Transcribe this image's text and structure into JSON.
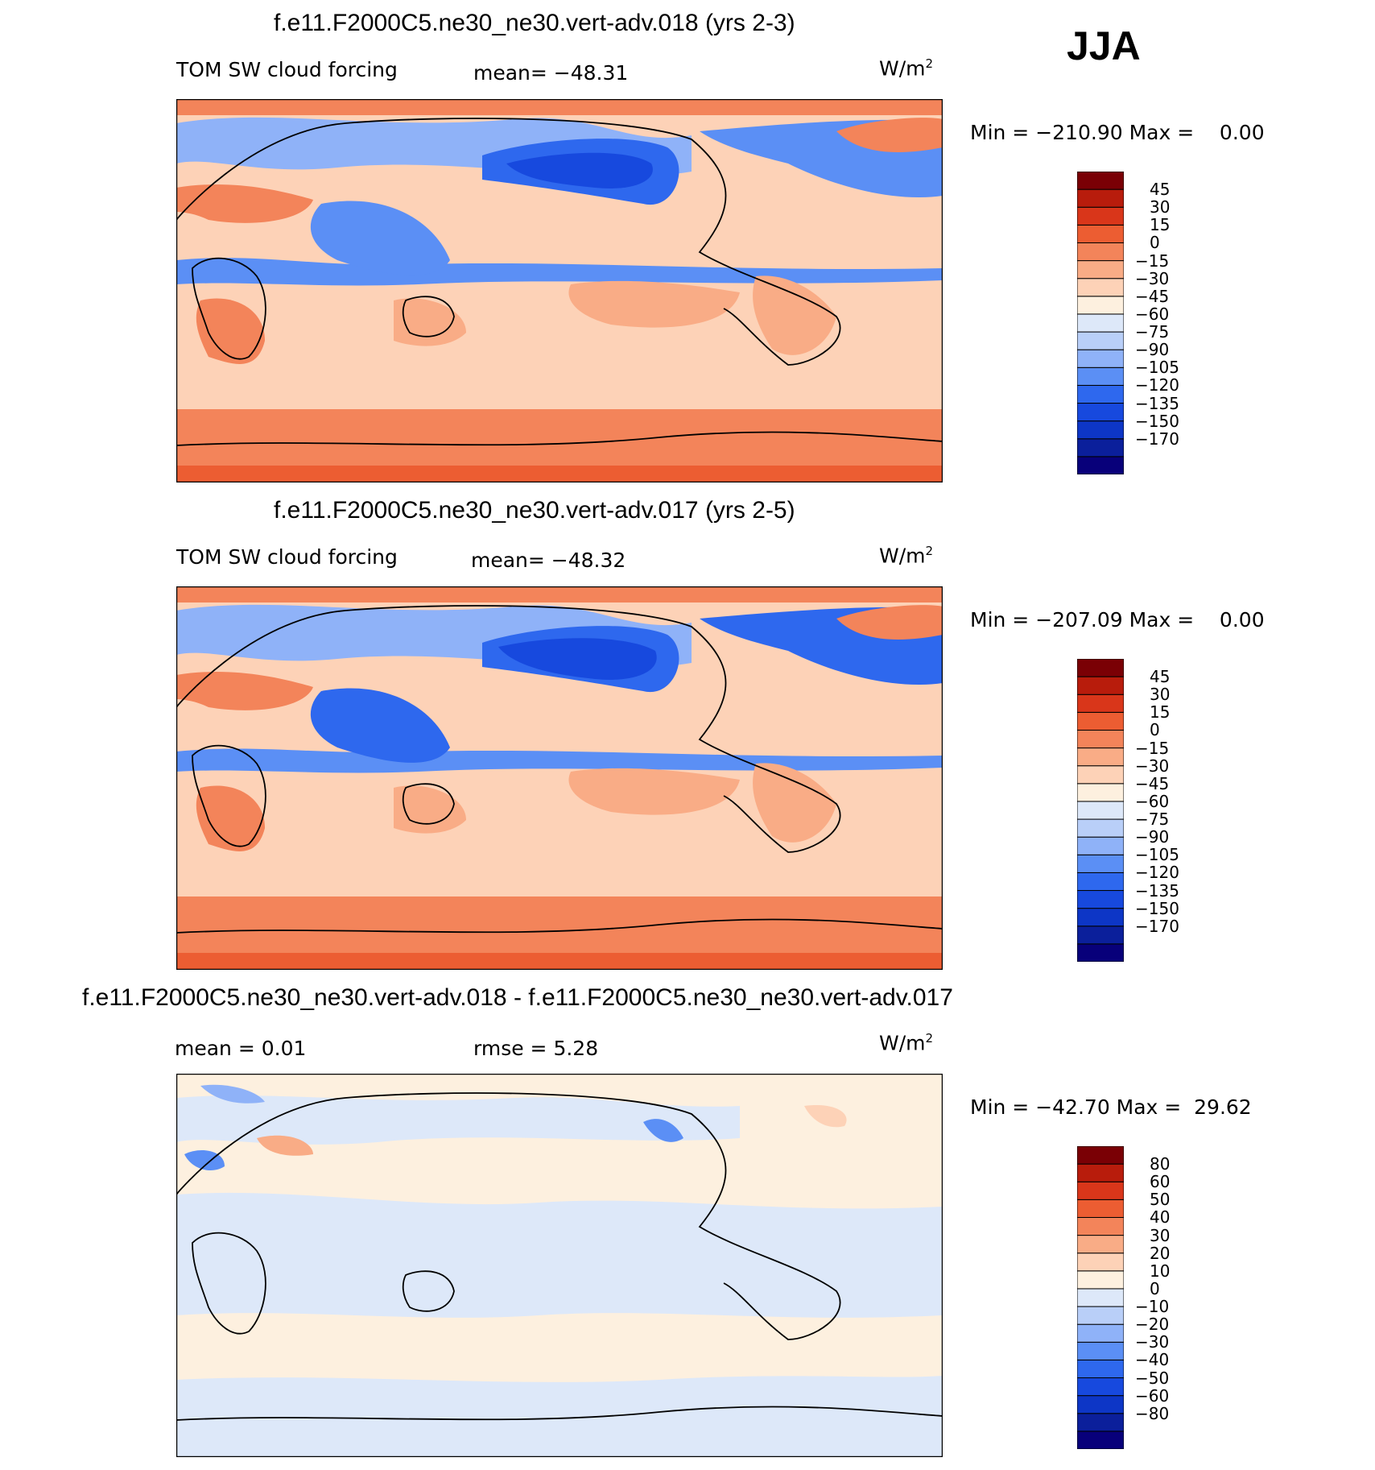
{
  "season": "JJA",
  "panels": [
    {
      "title": "f.e11.F2000C5.ne30_ne30.vert-adv.018 (yrs 2-3)",
      "variable": "TOM SW cloud forcing",
      "stat1": "mean= −48.31",
      "stat2": "",
      "units": "W/m",
      "units_sup": "2",
      "minmax": "Min = −210.90 Max =    0.00",
      "colorbar_labels": [
        "45",
        "30",
        "15",
        "0",
        "−15",
        "−30",
        "−45",
        "−60",
        "−75",
        "−90",
        "−105",
        "−120",
        "−135",
        "−150",
        "−170"
      ]
    },
    {
      "title": "f.e11.F2000C5.ne30_ne30.vert-adv.017 (yrs 2-5)",
      "variable": "TOM SW cloud forcing",
      "stat1": "mean= −48.32",
      "stat2": "",
      "units": "W/m",
      "units_sup": "2",
      "minmax": "Min = −207.09 Max =    0.00",
      "colorbar_labels": [
        "45",
        "30",
        "15",
        "0",
        "−15",
        "−30",
        "−45",
        "−60",
        "−75",
        "−90",
        "−105",
        "−120",
        "−135",
        "−150",
        "−170"
      ]
    },
    {
      "title": "f.e11.F2000C5.ne30_ne30.vert-adv.018 - f.e11.F2000C5.ne30_ne30.vert-adv.017",
      "variable": "",
      "stat1": "mean =    0.01",
      "stat2": "rmse =    5.28",
      "units": "W/m",
      "units_sup": "2",
      "minmax": "Min = −42.70 Max =  29.62",
      "colorbar_labels": [
        "80",
        "60",
        "50",
        "40",
        "30",
        "20",
        "10",
        "0",
        "−10",
        "−20",
        "−30",
        "−40",
        "−50",
        "−60",
        "−80"
      ]
    }
  ],
  "colorbar_colors": [
    "#08007a",
    "#0b1f9b",
    "#0d36c6",
    "#1749de",
    "#2e68ee",
    "#5b8ff5",
    "#8fb2f8",
    "#b9cff8",
    "#dde8f9",
    "#fdf0df",
    "#fdd2b7",
    "#f9ac86",
    "#f3845a",
    "#ec5d32",
    "#d9361a",
    "#b81c0c",
    "#7a0005"
  ]
}
